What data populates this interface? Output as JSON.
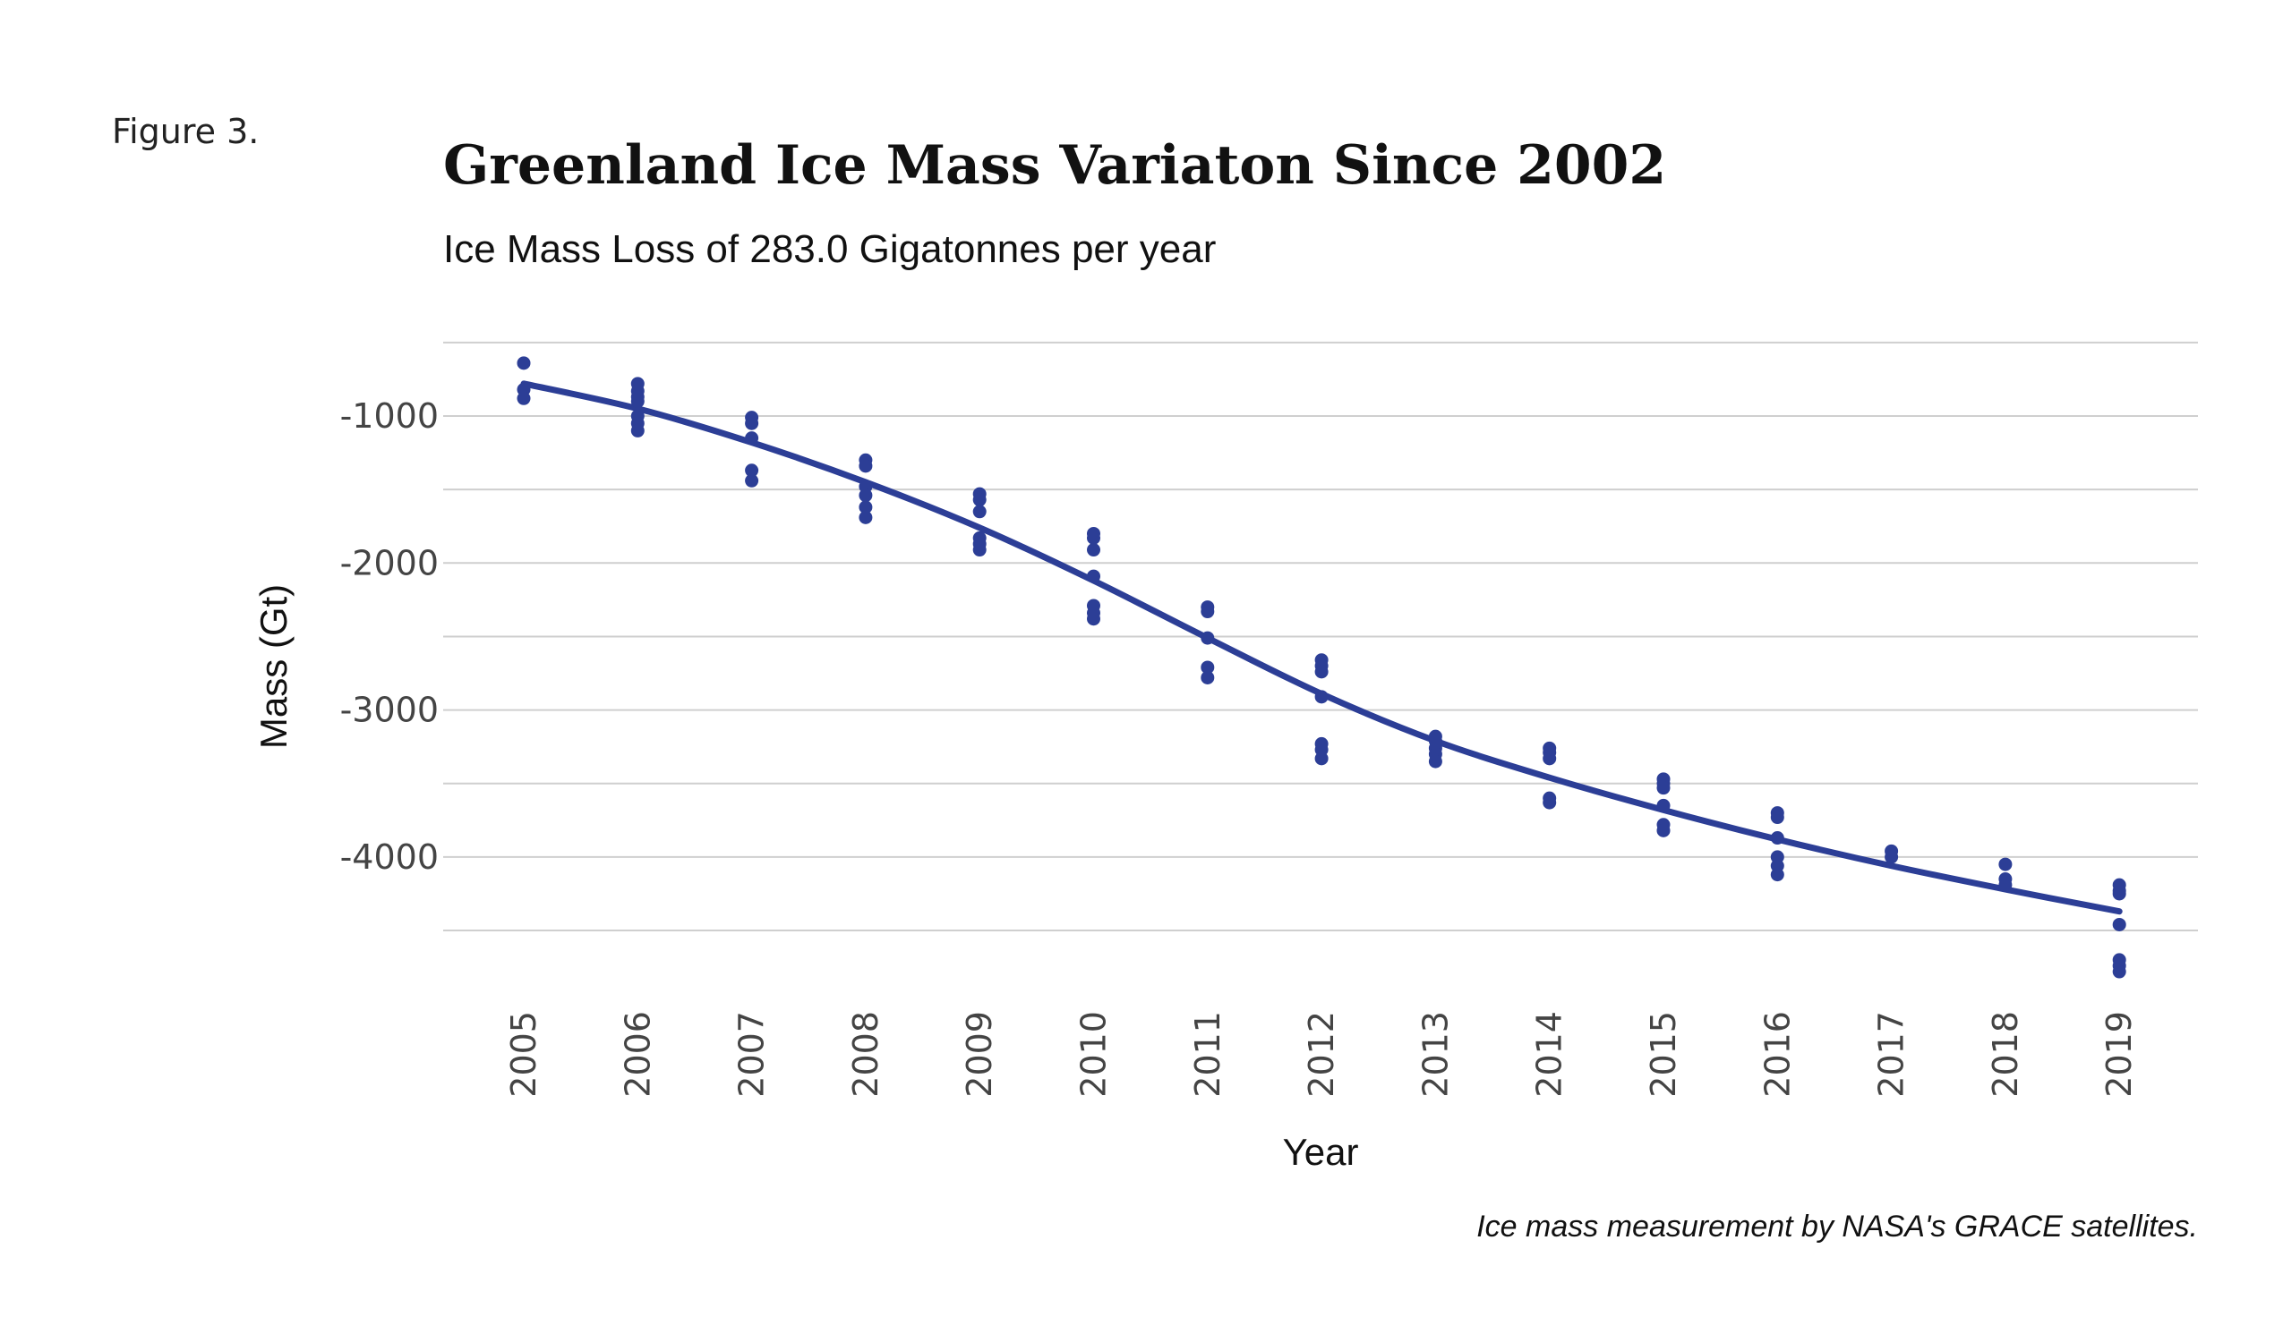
{
  "figure_label": "Figure 3.",
  "caption": "Ice mass measurement by NASA's GRACE satellites.",
  "colors": {
    "series": "#2c3e96",
    "grid": "#cfcfcf",
    "text": "#111111",
    "tick": "#444444"
  },
  "chart_data": {
    "type": "scatter",
    "title": "Greenland Ice Mass Variaton Since 2002",
    "subtitle": "Ice Mass Loss of 283.0 Gigatonnes per year",
    "xlabel": "Year",
    "ylabel": "Mass (Gt)",
    "categories": [
      "2005",
      "2006",
      "2007",
      "2008",
      "2009",
      "2010",
      "2011",
      "2012",
      "2013",
      "2014",
      "2015",
      "2016",
      "2017",
      "2018",
      "2019"
    ],
    "yticks": [
      -1000,
      -2000,
      -3000,
      -4000
    ],
    "ylim": [
      -4500,
      -500
    ],
    "grid": true,
    "series": [
      {
        "type": "scatter",
        "points": [
          {
            "x": "2005",
            "y": -640
          },
          {
            "x": "2005",
            "y": -820
          },
          {
            "x": "2005",
            "y": -880
          },
          {
            "x": "2006",
            "y": -780
          },
          {
            "x": "2006",
            "y": -830
          },
          {
            "x": "2006",
            "y": -870
          },
          {
            "x": "2006",
            "y": -900
          },
          {
            "x": "2006",
            "y": -1000
          },
          {
            "x": "2006",
            "y": -1050
          },
          {
            "x": "2006",
            "y": -1100
          },
          {
            "x": "2007",
            "y": -1010
          },
          {
            "x": "2007",
            "y": -1050
          },
          {
            "x": "2007",
            "y": -1150
          },
          {
            "x": "2007",
            "y": -1370
          },
          {
            "x": "2007",
            "y": -1440
          },
          {
            "x": "2008",
            "y": -1300
          },
          {
            "x": "2008",
            "y": -1340
          },
          {
            "x": "2008",
            "y": -1480
          },
          {
            "x": "2008",
            "y": -1540
          },
          {
            "x": "2008",
            "y": -1620
          },
          {
            "x": "2008",
            "y": -1690
          },
          {
            "x": "2009",
            "y": -1530
          },
          {
            "x": "2009",
            "y": -1570
          },
          {
            "x": "2009",
            "y": -1650
          },
          {
            "x": "2009",
            "y": -1830
          },
          {
            "x": "2009",
            "y": -1870
          },
          {
            "x": "2009",
            "y": -1910
          },
          {
            "x": "2010",
            "y": -1800
          },
          {
            "x": "2010",
            "y": -1830
          },
          {
            "x": "2010",
            "y": -1910
          },
          {
            "x": "2010",
            "y": -2090
          },
          {
            "x": "2010",
            "y": -2290
          },
          {
            "x": "2010",
            "y": -2340
          },
          {
            "x": "2010",
            "y": -2380
          },
          {
            "x": "2011",
            "y": -2300
          },
          {
            "x": "2011",
            "y": -2330
          },
          {
            "x": "2011",
            "y": -2510
          },
          {
            "x": "2011",
            "y": -2710
          },
          {
            "x": "2011",
            "y": -2780
          },
          {
            "x": "2012",
            "y": -2660
          },
          {
            "x": "2012",
            "y": -2700
          },
          {
            "x": "2012",
            "y": -2740
          },
          {
            "x": "2012",
            "y": -2910
          },
          {
            "x": "2012",
            "y": -3230
          },
          {
            "x": "2012",
            "y": -3270
          },
          {
            "x": "2012",
            "y": -3330
          },
          {
            "x": "2013",
            "y": -3180
          },
          {
            "x": "2013",
            "y": -3210
          },
          {
            "x": "2013",
            "y": -3260
          },
          {
            "x": "2013",
            "y": -3300
          },
          {
            "x": "2013",
            "y": -3350
          },
          {
            "x": "2014",
            "y": -3260
          },
          {
            "x": "2014",
            "y": -3290
          },
          {
            "x": "2014",
            "y": -3330
          },
          {
            "x": "2014",
            "y": -3600
          },
          {
            "x": "2014",
            "y": -3630
          },
          {
            "x": "2015",
            "y": -3470
          },
          {
            "x": "2015",
            "y": -3500
          },
          {
            "x": "2015",
            "y": -3530
          },
          {
            "x": "2015",
            "y": -3650
          },
          {
            "x": "2015",
            "y": -3780
          },
          {
            "x": "2015",
            "y": -3820
          },
          {
            "x": "2016",
            "y": -3700
          },
          {
            "x": "2016",
            "y": -3730
          },
          {
            "x": "2016",
            "y": -3870
          },
          {
            "x": "2016",
            "y": -4000
          },
          {
            "x": "2016",
            "y": -4060
          },
          {
            "x": "2016",
            "y": -4120
          },
          {
            "x": "2017",
            "y": -3960
          },
          {
            "x": "2017",
            "y": -4000
          },
          {
            "x": "2018",
            "y": -4050
          },
          {
            "x": "2018",
            "y": -4150
          },
          {
            "x": "2018",
            "y": -4190
          },
          {
            "x": "2019",
            "y": -4190
          },
          {
            "x": "2019",
            "y": -4230
          },
          {
            "x": "2019",
            "y": -4250
          },
          {
            "x": "2019",
            "y": -4460
          },
          {
            "x": "2019",
            "y": -4700
          },
          {
            "x": "2019",
            "y": -4740
          },
          {
            "x": "2019",
            "y": -4780
          }
        ]
      },
      {
        "type": "line",
        "smooth": true,
        "points": [
          {
            "x": "2005",
            "y": -780
          },
          {
            "x": "2006",
            "y": -950
          },
          {
            "x": "2007",
            "y": -1180
          },
          {
            "x": "2008",
            "y": -1450
          },
          {
            "x": "2009",
            "y": -1760
          },
          {
            "x": "2010",
            "y": -2120
          },
          {
            "x": "2011",
            "y": -2510
          },
          {
            "x": "2012",
            "y": -2890
          },
          {
            "x": "2013",
            "y": -3210
          },
          {
            "x": "2014",
            "y": -3460
          },
          {
            "x": "2015",
            "y": -3680
          },
          {
            "x": "2016",
            "y": -3880
          },
          {
            "x": "2017",
            "y": -4060
          },
          {
            "x": "2018",
            "y": -4220
          },
          {
            "x": "2019",
            "y": -4370
          }
        ]
      }
    ]
  }
}
